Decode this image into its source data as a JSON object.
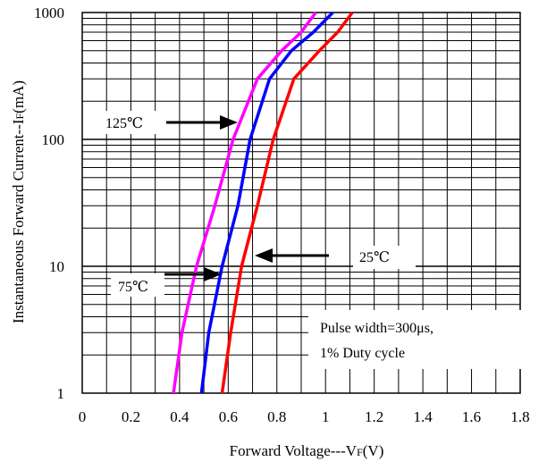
{
  "chart_data": {
    "type": "line",
    "x_axis": {
      "label_main": "Forward Voltage---V",
      "label_sub": "F",
      "label_unit": "(V)",
      "range": [
        0,
        1.8
      ],
      "ticks": [
        0,
        0.2,
        0.4,
        0.6,
        0.8,
        1.0,
        1.2,
        1.4,
        1.6,
        1.8
      ],
      "tick_labels": [
        "0",
        "0.2",
        "0.4",
        "0.6",
        "0.8",
        "1",
        "1.2",
        "1.4",
        "1.6",
        "1.8"
      ]
    },
    "y_axis": {
      "label_main": "Instantaneous Forward Current--I",
      "label_sub": "F",
      "label_unit": "(mA)",
      "scale": "log",
      "range": [
        1,
        1000
      ],
      "ticks": [
        1,
        10,
        100,
        1000
      ],
      "tick_labels": [
        "1",
        "10",
        "100",
        "1000"
      ]
    },
    "grid": true,
    "series": [
      {
        "name": "125℃",
        "color": "#ff00ff",
        "x": [
          0.375,
          0.41,
          0.47,
          0.545,
          0.62,
          0.72,
          0.82,
          0.9,
          0.96
        ],
        "y": [
          1,
          3,
          10,
          30,
          100,
          300,
          500,
          700,
          1000
        ]
      },
      {
        "name": "75℃",
        "color": "#0000ff",
        "x": [
          0.49,
          0.52,
          0.575,
          0.64,
          0.69,
          0.77,
          0.86,
          0.95,
          1.03
        ],
        "y": [
          1,
          3,
          10,
          30,
          100,
          300,
          500,
          700,
          1000
        ]
      },
      {
        "name": "25℃",
        "color": "#ff0000",
        "x": [
          0.575,
          0.61,
          0.655,
          0.72,
          0.785,
          0.87,
          0.975,
          1.05,
          1.11
        ],
        "y": [
          1,
          3,
          10,
          30,
          100,
          300,
          500,
          700,
          1000
        ]
      }
    ],
    "annotations": {
      "label_125": "125℃",
      "label_75": "75℃",
      "label_25": "25℃",
      "note_line1": "Pulse width=300μs,",
      "note_line2": "1% Duty cycle"
    }
  }
}
